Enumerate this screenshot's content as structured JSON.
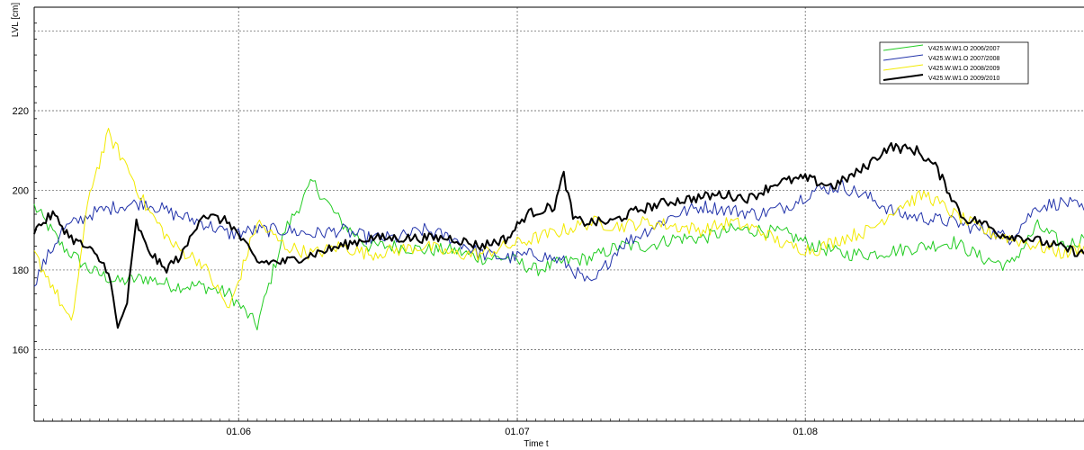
{
  "chart_data": {
    "type": "line",
    "title": "",
    "xlabel": "Time t",
    "ylabel": "LVL [cm]",
    "xlim": [
      "2000-05-10",
      "2000-08-31"
    ],
    "ylim": [
      142,
      246
    ],
    "yticks": [
      160,
      180,
      200,
      220,
      240
    ],
    "ytick_labels": [
      "160",
      "180",
      "200",
      "220",
      ""
    ],
    "xticks": [
      "2000-06-01",
      "2000-07-01",
      "2000-08-01"
    ],
    "xtick_labels": [
      "01.06",
      "01.07",
      "01.08"
    ],
    "grid": true,
    "legend_position": "top-right",
    "series": [
      {
        "name": "V425.W.W1.O  2006/2007",
        "color": "#22cc22",
        "x": [
          "2000-05-10",
          "2000-05-13",
          "2000-05-16",
          "2000-05-19",
          "2000-05-22",
          "2000-05-25",
          "2000-05-28",
          "2000-05-31",
          "2000-06-03",
          "2000-06-06",
          "2000-06-09",
          "2000-06-12",
          "2000-06-15",
          "2000-06-18",
          "2000-06-21",
          "2000-06-24",
          "2000-06-27",
          "2000-06-30",
          "2000-07-03",
          "2000-07-06",
          "2000-07-09",
          "2000-07-12",
          "2000-07-15",
          "2000-07-18",
          "2000-07-21",
          "2000-07-24",
          "2000-07-27",
          "2000-07-30",
          "2000-08-02",
          "2000-08-05",
          "2000-08-08",
          "2000-08-11",
          "2000-08-14",
          "2000-08-17",
          "2000-08-20",
          "2000-08-23",
          "2000-08-26",
          "2000-08-29",
          "2000-08-31"
        ],
        "values": [
          196,
          186,
          180,
          177,
          178,
          176,
          176,
          174,
          166,
          190,
          202,
          192,
          186,
          186,
          185,
          185,
          183,
          183,
          180,
          182,
          183,
          186,
          186,
          188,
          188,
          190,
          190,
          189,
          186,
          184,
          184,
          185,
          186,
          187,
          183,
          181,
          191,
          186,
          188
        ]
      },
      {
        "name": "V425.W.W1.O  2007/2008",
        "color": "#2233aa",
        "x": [
          "2000-05-10",
          "2000-05-13",
          "2000-05-16",
          "2000-05-19",
          "2000-05-22",
          "2000-05-25",
          "2000-05-28",
          "2000-05-31",
          "2000-06-03",
          "2000-06-06",
          "2000-06-09",
          "2000-06-12",
          "2000-06-15",
          "2000-06-18",
          "2000-06-21",
          "2000-06-24",
          "2000-06-27",
          "2000-06-30",
          "2000-07-03",
          "2000-07-06",
          "2000-07-09",
          "2000-07-12",
          "2000-07-15",
          "2000-07-18",
          "2000-07-21",
          "2000-07-24",
          "2000-07-27",
          "2000-07-30",
          "2000-08-02",
          "2000-08-05",
          "2000-08-08",
          "2000-08-11",
          "2000-08-14",
          "2000-08-17",
          "2000-08-20",
          "2000-08-23",
          "2000-08-26",
          "2000-08-29",
          "2000-08-31"
        ],
        "values": [
          177,
          190,
          194,
          196,
          197,
          194,
          192,
          189,
          190,
          190,
          189,
          190,
          188,
          188,
          190,
          188,
          184,
          183,
          184,
          182,
          176,
          186,
          190,
          194,
          196,
          195,
          194,
          196,
          200,
          201,
          198,
          194,
          193,
          192,
          190,
          188,
          196,
          197,
          195
        ]
      },
      {
        "name": "V425.W.W1.O  2008/2009",
        "color": "#f2ea00",
        "x": [
          "2000-05-10",
          "2000-05-12",
          "2000-05-14",
          "2000-05-16",
          "2000-05-18",
          "2000-05-20",
          "2000-05-22",
          "2000-05-25",
          "2000-05-28",
          "2000-05-31",
          "2000-06-03",
          "2000-06-06",
          "2000-06-09",
          "2000-06-12",
          "2000-06-15",
          "2000-06-18",
          "2000-06-21",
          "2000-06-24",
          "2000-06-27",
          "2000-06-30",
          "2000-07-03",
          "2000-07-06",
          "2000-07-09",
          "2000-07-12",
          "2000-07-15",
          "2000-07-18",
          "2000-07-21",
          "2000-07-24",
          "2000-07-27",
          "2000-07-30",
          "2000-08-02",
          "2000-08-05",
          "2000-08-08",
          "2000-08-11",
          "2000-08-14",
          "2000-08-17",
          "2000-08-20",
          "2000-08-23",
          "2000-08-26",
          "2000-08-29",
          "2000-08-31"
        ],
        "values": [
          184,
          176,
          166,
          200,
          214,
          206,
          196,
          186,
          182,
          170,
          192,
          186,
          184,
          186,
          184,
          185,
          186,
          184,
          184,
          186,
          188,
          190,
          192,
          191,
          192,
          191,
          190,
          192,
          190,
          186,
          185,
          188,
          190,
          196,
          199,
          194,
          190,
          188,
          186,
          184,
          186
        ]
      },
      {
        "name": "V425.W.W1.O  2009/2010",
        "color": "#000000",
        "x": [
          "2000-05-10",
          "2000-05-12",
          "2000-05-14",
          "2000-05-16",
          "2000-05-18",
          "2000-05-19",
          "2000-05-20",
          "2000-05-21",
          "2000-05-22",
          "2000-05-24",
          "2000-05-26",
          "2000-05-28",
          "2000-05-31",
          "2000-06-03",
          "2000-06-06",
          "2000-06-09",
          "2000-06-12",
          "2000-06-15",
          "2000-06-18",
          "2000-06-21",
          "2000-06-24",
          "2000-06-27",
          "2000-06-30",
          "2000-07-02",
          "2000-07-05",
          "2000-07-06",
          "2000-07-07",
          "2000-07-08",
          "2000-07-11",
          "2000-07-14",
          "2000-07-17",
          "2000-07-20",
          "2000-07-23",
          "2000-07-26",
          "2000-07-29",
          "2000-08-01",
          "2000-08-04",
          "2000-08-07",
          "2000-08-10",
          "2000-08-13",
          "2000-08-15",
          "2000-08-18",
          "2000-08-20",
          "2000-08-22",
          "2000-08-25",
          "2000-08-28",
          "2000-08-31"
        ],
        "values": [
          190,
          194,
          188,
          185,
          180,
          165,
          172,
          192,
          186,
          180,
          184,
          194,
          192,
          182,
          182,
          184,
          186,
          188,
          188,
          188,
          188,
          186,
          188,
          194,
          196,
          204,
          193,
          192,
          192,
          195,
          197,
          198,
          199,
          198,
          202,
          203,
          201,
          205,
          211,
          210,
          206,
          193,
          192,
          189,
          188,
          186,
          184
        ]
      }
    ]
  }
}
